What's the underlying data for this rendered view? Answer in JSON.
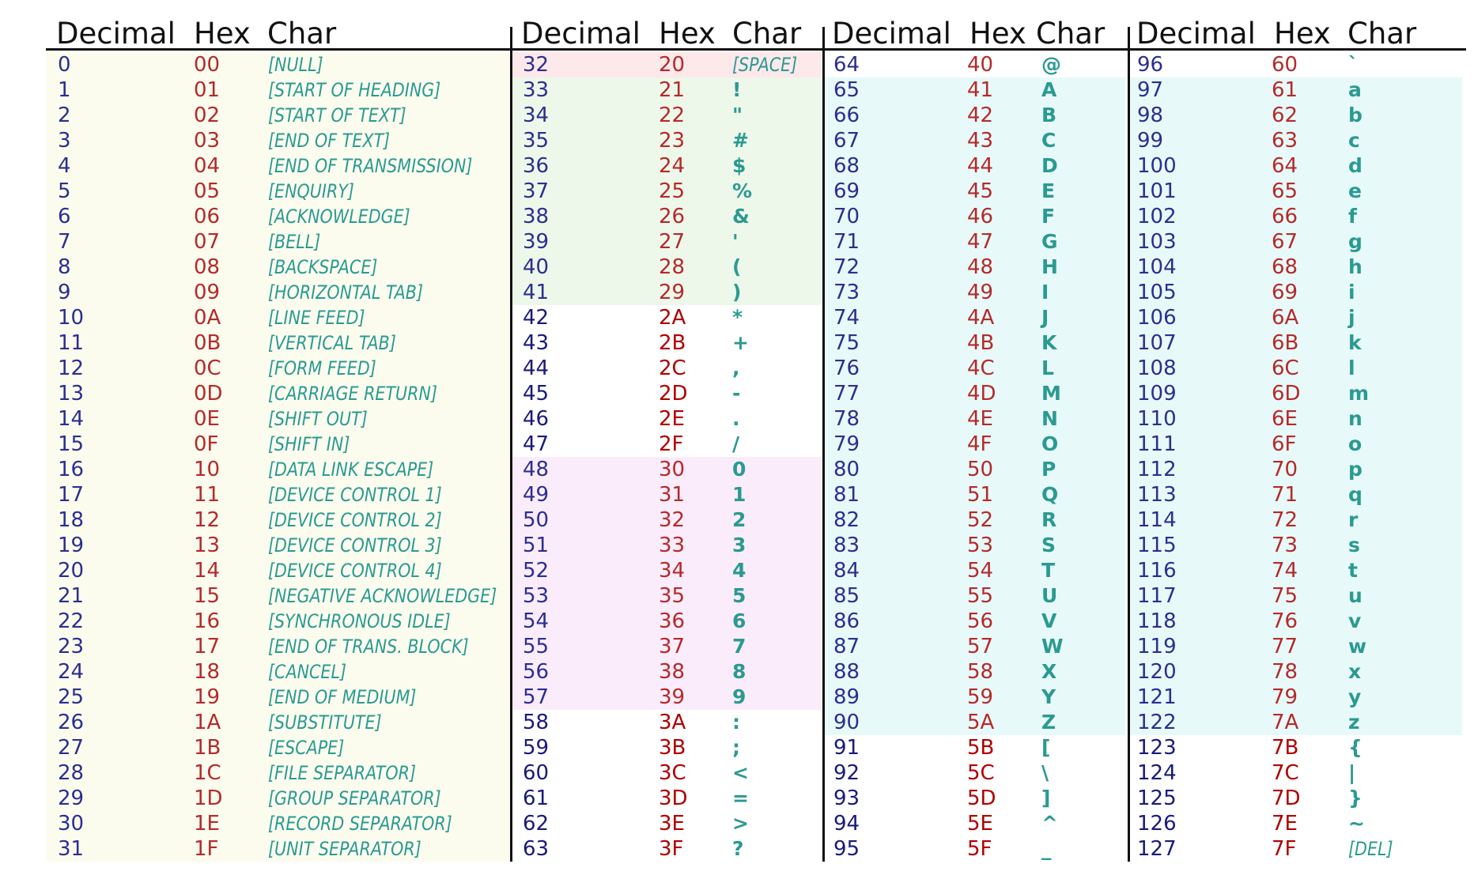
{
  "headers": [
    "Decimal",
    "Hex",
    "Char"
  ],
  "colors": {
    "decimal": "#2b2f8f",
    "hex": "#b52a2a",
    "char": "#2a9a92",
    "control_band": "#fbfcee",
    "space_band": "#fde8ea",
    "punctuation_band": "#eef8ea",
    "digit_band": "#fbecfb",
    "letter_band": "#e8f9f9",
    "rules": "#111111"
  },
  "groups": [
    {
      "rows": [
        {
          "dec": "0",
          "hex": "00",
          "char": "[NULL]",
          "type": "name"
        },
        {
          "dec": "1",
          "hex": "01",
          "char": "[START OF HEADING]",
          "type": "name"
        },
        {
          "dec": "2",
          "hex": "02",
          "char": "[START OF TEXT]",
          "type": "name"
        },
        {
          "dec": "3",
          "hex": "03",
          "char": "[END OF TEXT]",
          "type": "name"
        },
        {
          "dec": "4",
          "hex": "04",
          "char": "[END OF TRANSMISSION]",
          "type": "name"
        },
        {
          "dec": "5",
          "hex": "05",
          "char": "[ENQUIRY]",
          "type": "name"
        },
        {
          "dec": "6",
          "hex": "06",
          "char": "[ACKNOWLEDGE]",
          "type": "name"
        },
        {
          "dec": "7",
          "hex": "07",
          "char": "[BELL]",
          "type": "name"
        },
        {
          "dec": "8",
          "hex": "08",
          "char": "[BACKSPACE]",
          "type": "name"
        },
        {
          "dec": "9",
          "hex": "09",
          "char": "[HORIZONTAL TAB]",
          "type": "name"
        },
        {
          "dec": "10",
          "hex": "0A",
          "char": "[LINE FEED]",
          "type": "name"
        },
        {
          "dec": "11",
          "hex": "0B",
          "char": "[VERTICAL TAB]",
          "type": "name"
        },
        {
          "dec": "12",
          "hex": "0C",
          "char": "[FORM FEED]",
          "type": "name"
        },
        {
          "dec": "13",
          "hex": "0D",
          "char": "[CARRIAGE RETURN]",
          "type": "name"
        },
        {
          "dec": "14",
          "hex": "0E",
          "char": "[SHIFT OUT]",
          "type": "name"
        },
        {
          "dec": "15",
          "hex": "0F",
          "char": "[SHIFT IN]",
          "type": "name"
        },
        {
          "dec": "16",
          "hex": "10",
          "char": "[DATA LINK ESCAPE]",
          "type": "name"
        },
        {
          "dec": "17",
          "hex": "11",
          "char": "[DEVICE CONTROL 1]",
          "type": "name"
        },
        {
          "dec": "18",
          "hex": "12",
          "char": "[DEVICE CONTROL 2]",
          "type": "name"
        },
        {
          "dec": "19",
          "hex": "13",
          "char": "[DEVICE CONTROL 3]",
          "type": "name"
        },
        {
          "dec": "20",
          "hex": "14",
          "char": "[DEVICE CONTROL 4]",
          "type": "name"
        },
        {
          "dec": "21",
          "hex": "15",
          "char": "[NEGATIVE ACKNOWLEDGE]",
          "type": "name"
        },
        {
          "dec": "22",
          "hex": "16",
          "char": "[SYNCHRONOUS IDLE]",
          "type": "name"
        },
        {
          "dec": "23",
          "hex": "17",
          "char": "[END OF TRANS. BLOCK]",
          "type": "name"
        },
        {
          "dec": "24",
          "hex": "18",
          "char": "[CANCEL]",
          "type": "name"
        },
        {
          "dec": "25",
          "hex": "19",
          "char": "[END OF MEDIUM]",
          "type": "name"
        },
        {
          "dec": "26",
          "hex": "1A",
          "char": "[SUBSTITUTE]",
          "type": "name"
        },
        {
          "dec": "27",
          "hex": "1B",
          "char": "[ESCAPE]",
          "type": "name"
        },
        {
          "dec": "28",
          "hex": "1C",
          "char": "[FILE SEPARATOR]",
          "type": "name"
        },
        {
          "dec": "29",
          "hex": "1D",
          "char": "[GROUP SEPARATOR]",
          "type": "name"
        },
        {
          "dec": "30",
          "hex": "1E",
          "char": "[RECORD SEPARATOR]",
          "type": "name"
        },
        {
          "dec": "31",
          "hex": "1F",
          "char": "[UNIT SEPARATOR]",
          "type": "name"
        }
      ]
    },
    {
      "rows": [
        {
          "dec": "32",
          "hex": "20",
          "char": "[SPACE]",
          "type": "name"
        },
        {
          "dec": "33",
          "hex": "21",
          "char": "!",
          "type": "glyph"
        },
        {
          "dec": "34",
          "hex": "22",
          "char": "\"",
          "type": "glyph"
        },
        {
          "dec": "35",
          "hex": "23",
          "char": "#",
          "type": "glyph"
        },
        {
          "dec": "36",
          "hex": "24",
          "char": "$",
          "type": "glyph"
        },
        {
          "dec": "37",
          "hex": "25",
          "char": "%",
          "type": "glyph"
        },
        {
          "dec": "38",
          "hex": "26",
          "char": "&",
          "type": "glyph"
        },
        {
          "dec": "39",
          "hex": "27",
          "char": "'",
          "type": "glyph"
        },
        {
          "dec": "40",
          "hex": "28",
          "char": "(",
          "type": "glyph"
        },
        {
          "dec": "41",
          "hex": "29",
          "char": ")",
          "type": "glyph"
        },
        {
          "dec": "42",
          "hex": "2A",
          "char": "*",
          "type": "glyph"
        },
        {
          "dec": "43",
          "hex": "2B",
          "char": "+",
          "type": "glyph"
        },
        {
          "dec": "44",
          "hex": "2C",
          "char": ",",
          "type": "glyph"
        },
        {
          "dec": "45",
          "hex": "2D",
          "char": "-",
          "type": "glyph"
        },
        {
          "dec": "46",
          "hex": "2E",
          "char": ".",
          "type": "glyph"
        },
        {
          "dec": "47",
          "hex": "2F",
          "char": "/",
          "type": "glyph"
        },
        {
          "dec": "48",
          "hex": "30",
          "char": "0",
          "type": "glyph"
        },
        {
          "dec": "49",
          "hex": "31",
          "char": "1",
          "type": "glyph"
        },
        {
          "dec": "50",
          "hex": "32",
          "char": "2",
          "type": "glyph"
        },
        {
          "dec": "51",
          "hex": "33",
          "char": "3",
          "type": "glyph"
        },
        {
          "dec": "52",
          "hex": "34",
          "char": "4",
          "type": "glyph"
        },
        {
          "dec": "53",
          "hex": "35",
          "char": "5",
          "type": "glyph"
        },
        {
          "dec": "54",
          "hex": "36",
          "char": "6",
          "type": "glyph"
        },
        {
          "dec": "55",
          "hex": "37",
          "char": "7",
          "type": "glyph"
        },
        {
          "dec": "56",
          "hex": "38",
          "char": "8",
          "type": "glyph"
        },
        {
          "dec": "57",
          "hex": "39",
          "char": "9",
          "type": "glyph"
        },
        {
          "dec": "58",
          "hex": "3A",
          "char": ":",
          "type": "glyph"
        },
        {
          "dec": "59",
          "hex": "3B",
          "char": ";",
          "type": "glyph"
        },
        {
          "dec": "60",
          "hex": "3C",
          "char": "<",
          "type": "glyph"
        },
        {
          "dec": "61",
          "hex": "3D",
          "char": "=",
          "type": "glyph"
        },
        {
          "dec": "62",
          "hex": "3E",
          "char": ">",
          "type": "glyph"
        },
        {
          "dec": "63",
          "hex": "3F",
          "char": "?",
          "type": "glyph"
        }
      ]
    },
    {
      "rows": [
        {
          "dec": "64",
          "hex": "40",
          "char": "@",
          "type": "glyph"
        },
        {
          "dec": "65",
          "hex": "41",
          "char": "A",
          "type": "glyph"
        },
        {
          "dec": "66",
          "hex": "42",
          "char": "B",
          "type": "glyph"
        },
        {
          "dec": "67",
          "hex": "43",
          "char": "C",
          "type": "glyph"
        },
        {
          "dec": "68",
          "hex": "44",
          "char": "D",
          "type": "glyph"
        },
        {
          "dec": "69",
          "hex": "45",
          "char": "E",
          "type": "glyph"
        },
        {
          "dec": "70",
          "hex": "46",
          "char": "F",
          "type": "glyph"
        },
        {
          "dec": "71",
          "hex": "47",
          "char": "G",
          "type": "glyph"
        },
        {
          "dec": "72",
          "hex": "48",
          "char": "H",
          "type": "glyph"
        },
        {
          "dec": "73",
          "hex": "49",
          "char": "I",
          "type": "glyph"
        },
        {
          "dec": "74",
          "hex": "4A",
          "char": "J",
          "type": "glyph"
        },
        {
          "dec": "75",
          "hex": "4B",
          "char": "K",
          "type": "glyph"
        },
        {
          "dec": "76",
          "hex": "4C",
          "char": "L",
          "type": "glyph"
        },
        {
          "dec": "77",
          "hex": "4D",
          "char": "M",
          "type": "glyph"
        },
        {
          "dec": "78",
          "hex": "4E",
          "char": "N",
          "type": "glyph"
        },
        {
          "dec": "79",
          "hex": "4F",
          "char": "O",
          "type": "glyph"
        },
        {
          "dec": "80",
          "hex": "50",
          "char": "P",
          "type": "glyph"
        },
        {
          "dec": "81",
          "hex": "51",
          "char": "Q",
          "type": "glyph"
        },
        {
          "dec": "82",
          "hex": "52",
          "char": "R",
          "type": "glyph"
        },
        {
          "dec": "83",
          "hex": "53",
          "char": "S",
          "type": "glyph"
        },
        {
          "dec": "84",
          "hex": "54",
          "char": "T",
          "type": "glyph"
        },
        {
          "dec": "85",
          "hex": "55",
          "char": "U",
          "type": "glyph"
        },
        {
          "dec": "86",
          "hex": "56",
          "char": "V",
          "type": "glyph"
        },
        {
          "dec": "87",
          "hex": "57",
          "char": "W",
          "type": "glyph"
        },
        {
          "dec": "88",
          "hex": "58",
          "char": "X",
          "type": "glyph"
        },
        {
          "dec": "89",
          "hex": "59",
          "char": "Y",
          "type": "glyph"
        },
        {
          "dec": "90",
          "hex": "5A",
          "char": "Z",
          "type": "glyph"
        },
        {
          "dec": "91",
          "hex": "5B",
          "char": "[",
          "type": "glyph"
        },
        {
          "dec": "92",
          "hex": "5C",
          "char": "\\",
          "type": "glyph"
        },
        {
          "dec": "93",
          "hex": "5D",
          "char": "]",
          "type": "glyph"
        },
        {
          "dec": "94",
          "hex": "5E",
          "char": "^",
          "type": "glyph"
        },
        {
          "dec": "95",
          "hex": "5F",
          "char": "_",
          "type": "glyph"
        }
      ]
    },
    {
      "rows": [
        {
          "dec": "96",
          "hex": "60",
          "char": "`",
          "type": "glyph"
        },
        {
          "dec": "97",
          "hex": "61",
          "char": "a",
          "type": "glyph"
        },
        {
          "dec": "98",
          "hex": "62",
          "char": "b",
          "type": "glyph"
        },
        {
          "dec": "99",
          "hex": "63",
          "char": "c",
          "type": "glyph"
        },
        {
          "dec": "100",
          "hex": "64",
          "char": "d",
          "type": "glyph"
        },
        {
          "dec": "101",
          "hex": "65",
          "char": "e",
          "type": "glyph"
        },
        {
          "dec": "102",
          "hex": "66",
          "char": "f",
          "type": "glyph"
        },
        {
          "dec": "103",
          "hex": "67",
          "char": "g",
          "type": "glyph"
        },
        {
          "dec": "104",
          "hex": "68",
          "char": "h",
          "type": "glyph"
        },
        {
          "dec": "105",
          "hex": "69",
          "char": "i",
          "type": "glyph"
        },
        {
          "dec": "106",
          "hex": "6A",
          "char": "j",
          "type": "glyph"
        },
        {
          "dec": "107",
          "hex": "6B",
          "char": "k",
          "type": "glyph"
        },
        {
          "dec": "108",
          "hex": "6C",
          "char": "l",
          "type": "glyph"
        },
        {
          "dec": "109",
          "hex": "6D",
          "char": "m",
          "type": "glyph"
        },
        {
          "dec": "110",
          "hex": "6E",
          "char": "n",
          "type": "glyph"
        },
        {
          "dec": "111",
          "hex": "6F",
          "char": "o",
          "type": "glyph"
        },
        {
          "dec": "112",
          "hex": "70",
          "char": "p",
          "type": "glyph"
        },
        {
          "dec": "113",
          "hex": "71",
          "char": "q",
          "type": "glyph"
        },
        {
          "dec": "114",
          "hex": "72",
          "char": "r",
          "type": "glyph"
        },
        {
          "dec": "115",
          "hex": "73",
          "char": "s",
          "type": "glyph"
        },
        {
          "dec": "116",
          "hex": "74",
          "char": "t",
          "type": "glyph"
        },
        {
          "dec": "117",
          "hex": "75",
          "char": "u",
          "type": "glyph"
        },
        {
          "dec": "118",
          "hex": "76",
          "char": "v",
          "type": "glyph"
        },
        {
          "dec": "119",
          "hex": "77",
          "char": "w",
          "type": "glyph"
        },
        {
          "dec": "120",
          "hex": "78",
          "char": "x",
          "type": "glyph"
        },
        {
          "dec": "121",
          "hex": "79",
          "char": "y",
          "type": "glyph"
        },
        {
          "dec": "122",
          "hex": "7A",
          "char": "z",
          "type": "glyph"
        },
        {
          "dec": "123",
          "hex": "7B",
          "char": "{",
          "type": "glyph"
        },
        {
          "dec": "124",
          "hex": "7C",
          "char": "|",
          "type": "glyph"
        },
        {
          "dec": "125",
          "hex": "7D",
          "char": "}",
          "type": "glyph"
        },
        {
          "dec": "126",
          "hex": "7E",
          "char": "~",
          "type": "glyph"
        },
        {
          "dec": "127",
          "hex": "7F",
          "char": "[DEL]",
          "type": "name"
        }
      ]
    }
  ]
}
